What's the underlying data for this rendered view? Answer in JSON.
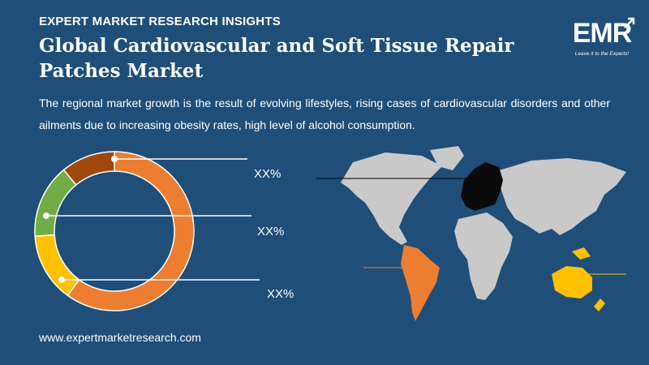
{
  "header": {
    "kicker": "EXPERT MARKET RESEARCH INSIGHTS",
    "title": "Global Cardiovascular and Soft Tissue Repair Patches Market",
    "description": "The regional market growth is the result of evolving lifestyles, rising cases of cardiovascular disorders and other ailments due to increasing obesity rates, high level of alcohol consumption."
  },
  "logo": {
    "text": "EMR",
    "tagline": "Leave it to the Experts!"
  },
  "footer": {
    "website": "www.expertmarketresearch.com"
  },
  "colors": {
    "background": "#1f4e79",
    "europe": "#0a0a0a",
    "latin_america": "#ed7d31",
    "asia_pacific": "#ffc000",
    "other_land": "#c9c9c9"
  },
  "chart_data": {
    "type": "pie",
    "variant": "donut",
    "slices": [
      {
        "value": 60,
        "color": "#ed7d31"
      },
      {
        "value": 14,
        "color": "#ffc000"
      },
      {
        "value": 15,
        "color": "#70ad47"
      },
      {
        "value": 11,
        "color": "#9e480e"
      }
    ],
    "callout_labels": [
      "XX%",
      "XX%",
      "XX%"
    ]
  }
}
